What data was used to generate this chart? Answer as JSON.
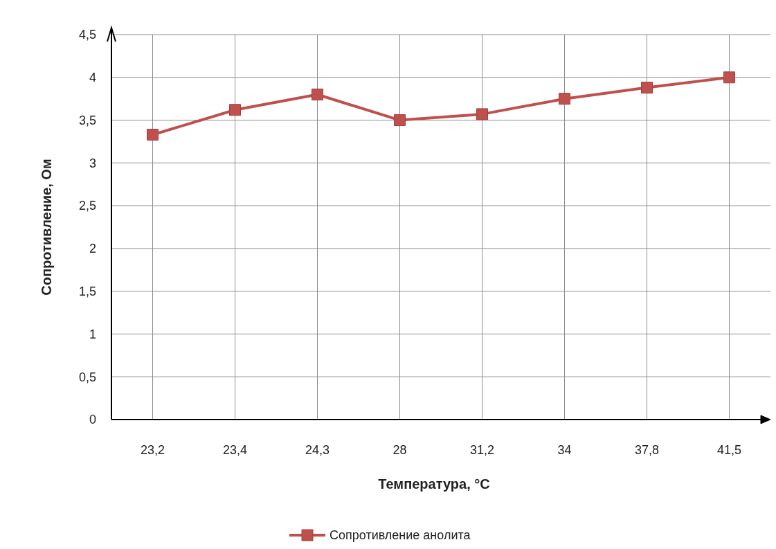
{
  "chart_data": {
    "type": "line",
    "xlabel": "Температура, °C",
    "ylabel": "Сопротивление, Ом",
    "categories": [
      "23,2",
      "23,4",
      "24,3",
      "28",
      "31,2",
      "34",
      "37,8",
      "41,5"
    ],
    "series": [
      {
        "name": "Сопротивление анолита",
        "color": "#c0504d",
        "values": [
          3.33,
          3.62,
          3.8,
          3.5,
          3.57,
          3.75,
          3.88,
          4.0
        ]
      }
    ],
    "ylim": [
      0,
      4.5
    ],
    "yticks": [
      0,
      {
        "value": 0.5,
        "label": "0,5"
      },
      1,
      {
        "value": 1.5,
        "label": "1,5"
      },
      2,
      {
        "value": 2.5,
        "label": "2,5"
      },
      3,
      {
        "value": 3.5,
        "label": "3,5"
      },
      4,
      {
        "value": 4.5,
        "label": "4,5"
      }
    ],
    "grid": true,
    "legend": "bottom",
    "marker": "square",
    "line_style": "solid"
  }
}
